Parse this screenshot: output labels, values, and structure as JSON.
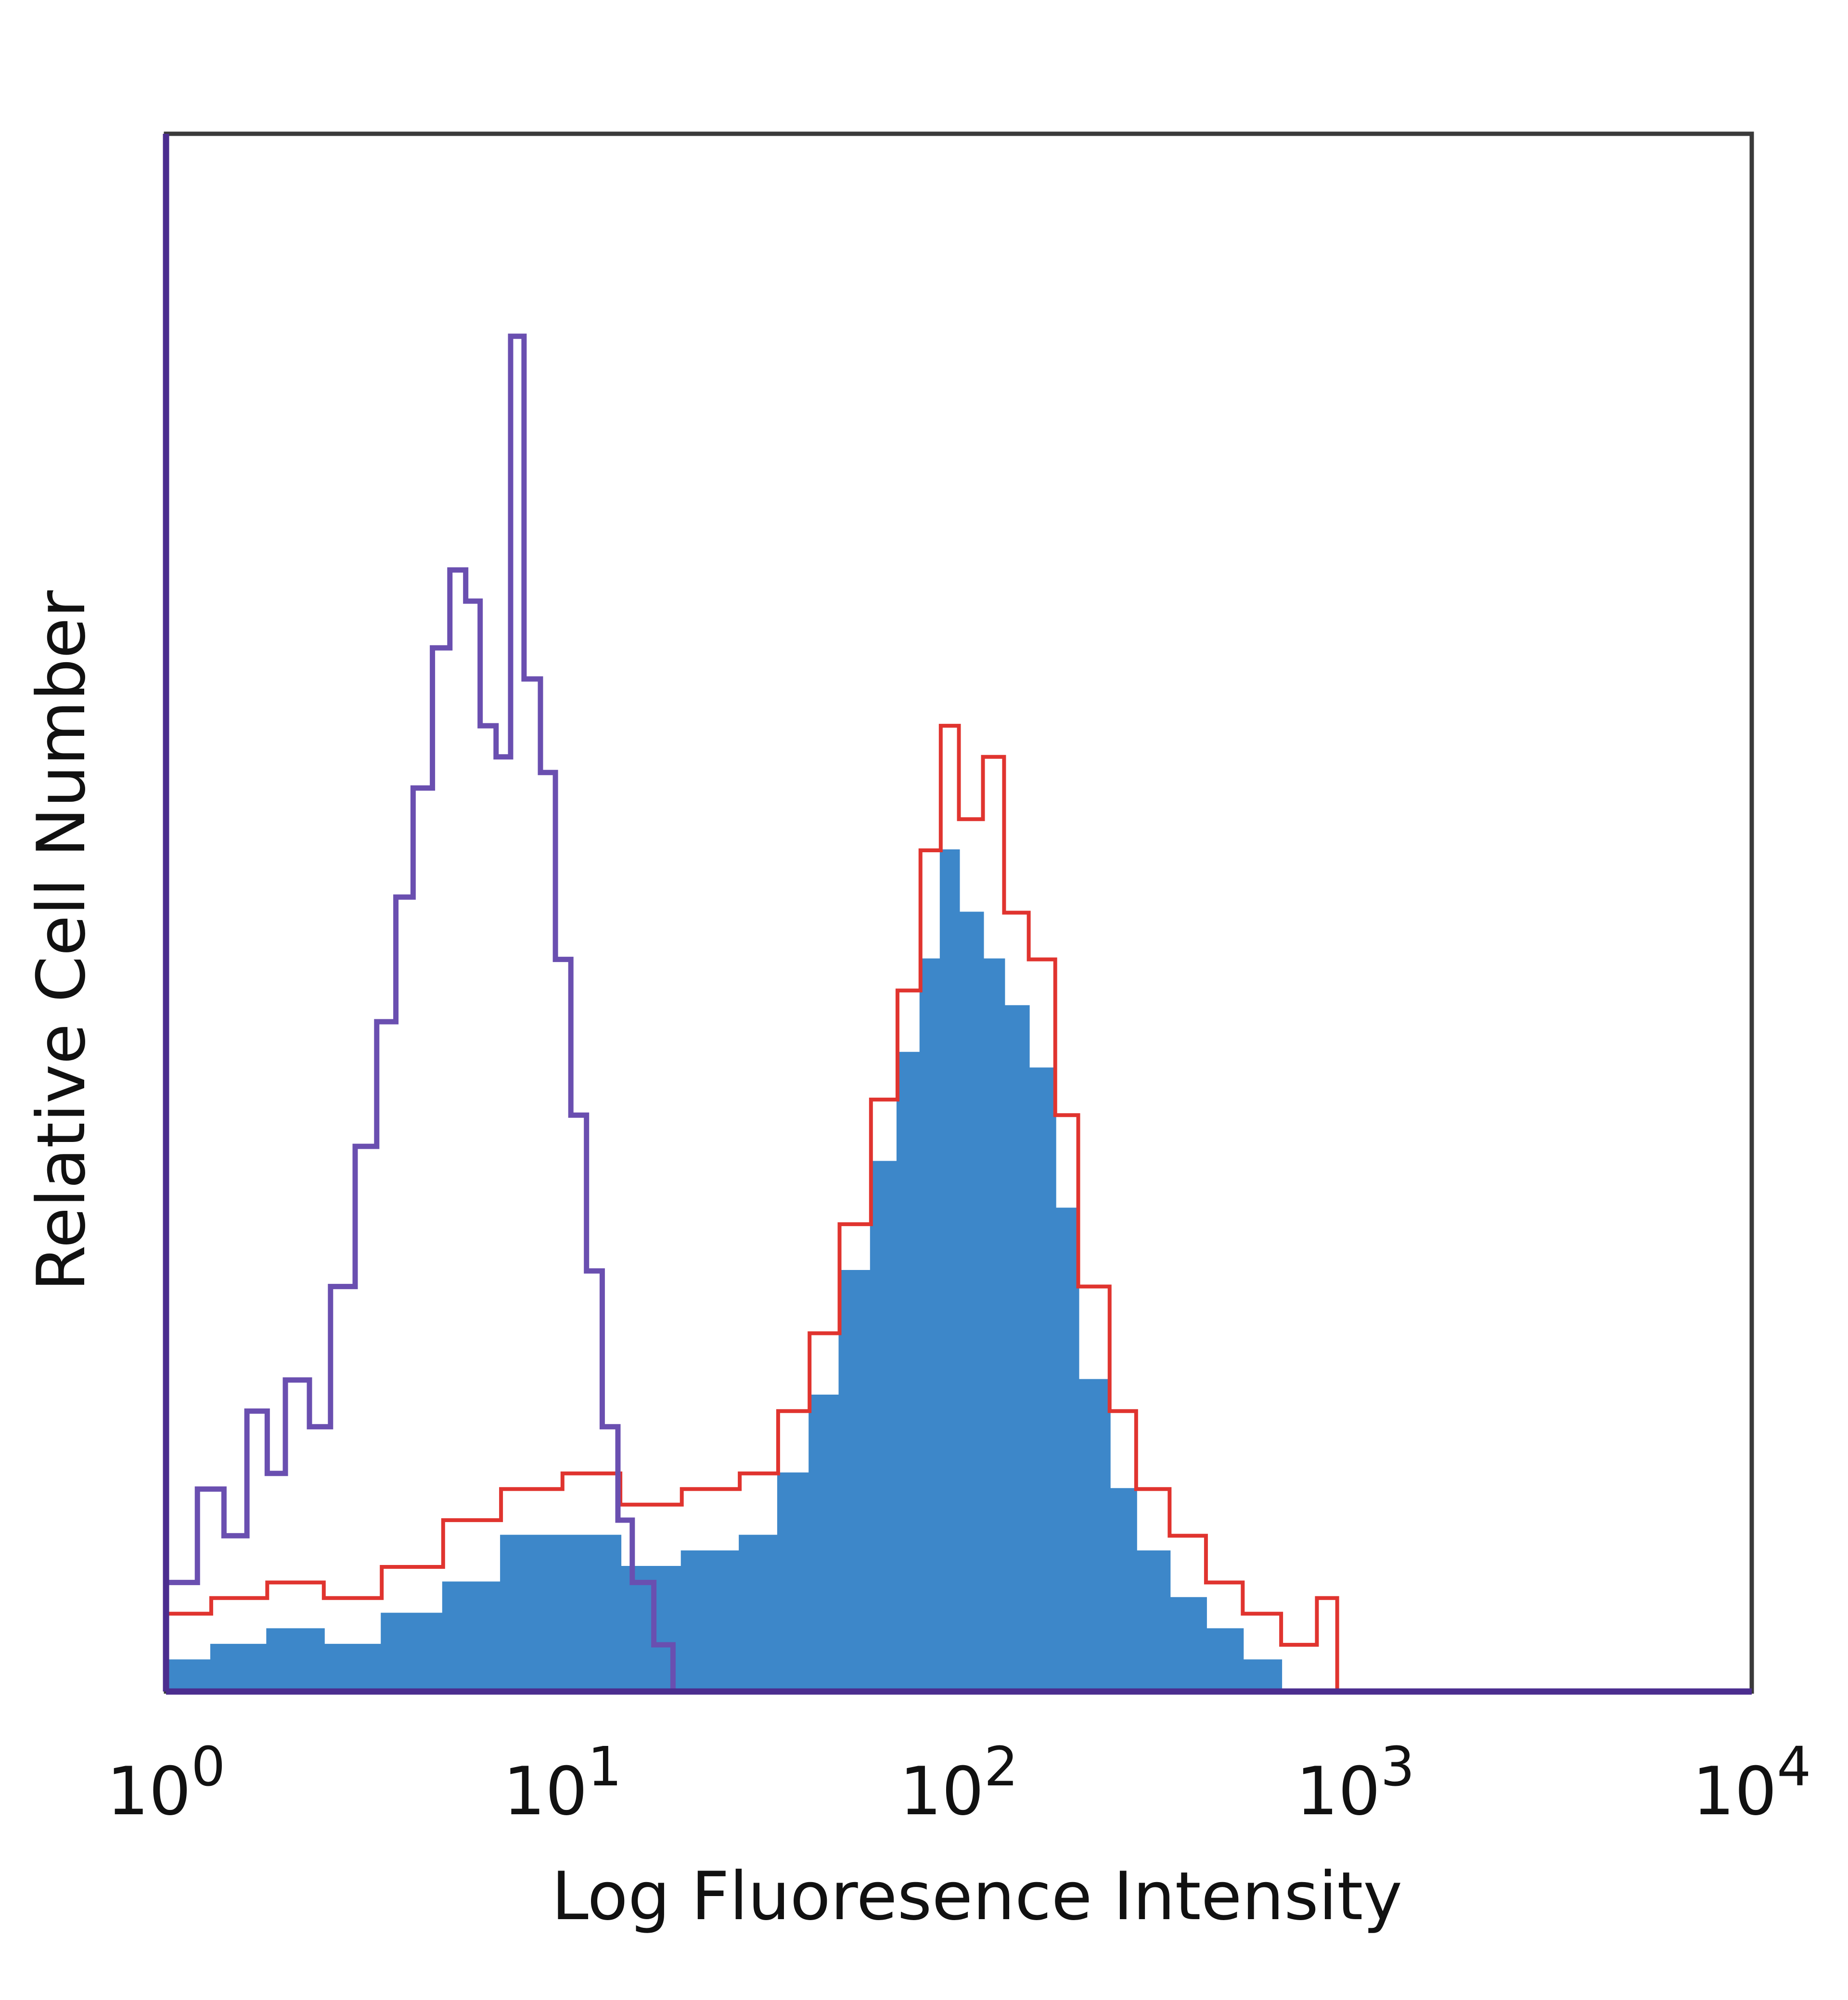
{
  "chart_data": {
    "type": "histogram",
    "title": "",
    "xlabel": "Log Fluoresence Intensity",
    "ylabel": "Relative Cell Number",
    "x_scale": "log",
    "xlim": [
      1,
      10000
    ],
    "ylim": [
      0,
      100
    ],
    "grid": false,
    "x_ticks": [
      {
        "value": 1,
        "base": "10",
        "exp": "0"
      },
      {
        "value": 10,
        "base": "10",
        "exp": "1"
      },
      {
        "value": 100,
        "base": "10",
        "exp": "2"
      },
      {
        "value": 1000,
        "base": "10",
        "exp": "3"
      },
      {
        "value": 10000,
        "base": "10",
        "exp": "4"
      }
    ],
    "series": [
      {
        "role": "isotype-control-outline",
        "color": "#6a4fb0",
        "style": "line",
        "x": [
          1.0,
          1.2,
          1.4,
          1.6,
          1.8,
          2.0,
          2.3,
          2.6,
          3.0,
          3.4,
          3.8,
          4.2,
          4.7,
          5.2,
          5.7,
          6.2,
          6.8,
          7.4,
          8.0,
          8.8,
          9.6,
          10.5,
          11.5,
          12.6,
          13.8,
          15.0,
          17.0,
          19.0
        ],
        "values": [
          7,
          13,
          10,
          18,
          14,
          20,
          17,
          26,
          35,
          43,
          51,
          58,
          67,
          72,
          70,
          62,
          60,
          87,
          65,
          59,
          47,
          37,
          27,
          17,
          11,
          7,
          3,
          0
        ]
      },
      {
        "role": "stained-filled",
        "color": "#3d87c9",
        "style": "filled",
        "x": [
          1.0,
          1.3,
          1.8,
          2.5,
          3.5,
          5.0,
          7.0,
          10.0,
          14.0,
          20.0,
          28.0,
          35.0,
          42.0,
          50.0,
          60.0,
          70.0,
          80.0,
          90.0,
          100.0,
          115.0,
          130.0,
          150.0,
          175.0,
          200.0,
          240.0,
          280.0,
          340.0,
          420.0,
          520.0,
          650.0
        ],
        "values": [
          2,
          3,
          4,
          3,
          5,
          7,
          10,
          10,
          8,
          9,
          10,
          14,
          19,
          27,
          34,
          41,
          47,
          54,
          50,
          47,
          44,
          40,
          31,
          20,
          13,
          9,
          6,
          4,
          2,
          0
        ]
      },
      {
        "role": "stained-outline",
        "color": "#e0342f",
        "style": "line",
        "x": [
          1.0,
          1.3,
          1.8,
          2.5,
          3.5,
          5.0,
          7.0,
          10.0,
          14.0,
          20.0,
          28.0,
          35.0,
          42.0,
          50.0,
          60.0,
          70.0,
          80.0,
          90.0,
          100.0,
          115.0,
          130.0,
          150.0,
          175.0,
          200.0,
          240.0,
          280.0,
          340.0,
          420.0,
          520.0,
          650.0,
          800.0,
          900.0
        ],
        "values": [
          5,
          6,
          7,
          6,
          8,
          11,
          13,
          14,
          12,
          13,
          14,
          18,
          23,
          30,
          38,
          45,
          54,
          62,
          56,
          60,
          50,
          47,
          37,
          26,
          18,
          13,
          10,
          7,
          5,
          3,
          6,
          0
        ]
      }
    ]
  }
}
